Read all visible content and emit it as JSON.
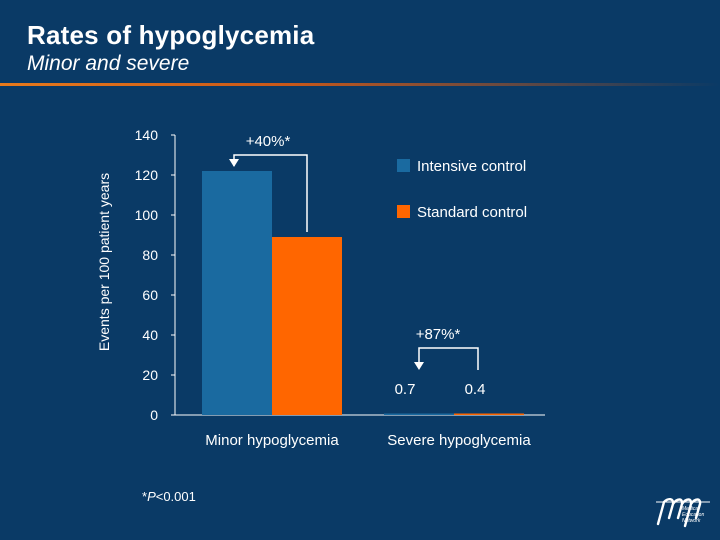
{
  "header": {
    "title": "Rates of hypoglycemia",
    "subtitle": "Minor and severe"
  },
  "footnote": {
    "star": "*",
    "p": "P",
    "rest": "<0.001"
  },
  "logo": {
    "mark": "mmn",
    "lines": [
      "Medical",
      "Education",
      "Network"
    ]
  },
  "colors": {
    "background": "#0a3a66",
    "intensive": "#1a6aa0",
    "standard": "#ff6600",
    "accent_rule": "#e87a1c"
  },
  "chart_data": {
    "type": "bar",
    "title": "Rates of hypoglycemia",
    "subtitle": "Minor and severe",
    "categories": [
      "Minor hypoglycemia",
      "Severe hypoglycemia"
    ],
    "series": [
      {
        "name": "Intensive control",
        "values": [
          122,
          0.7
        ]
      },
      {
        "name": "Standard control",
        "values": [
          89,
          0.4
        ]
      }
    ],
    "ylabel": "Events per 100 patient years",
    "xlabel": "",
    "ylim": [
      0,
      140
    ],
    "yticks": [
      0,
      20,
      40,
      60,
      80,
      100,
      120,
      140
    ],
    "legend_position": "top-right",
    "annotations": [
      {
        "text": "+40%*",
        "category": "Minor hypoglycemia"
      },
      {
        "text": "+87%*",
        "category": "Severe hypoglycemia"
      }
    ],
    "value_labels": [
      "0.7",
      "0.4"
    ]
  }
}
